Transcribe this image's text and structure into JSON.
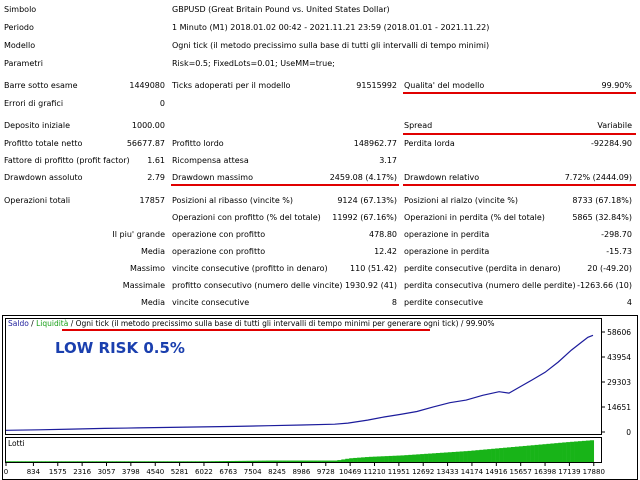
{
  "report": {
    "symbol_label": "Simbolo",
    "symbol_value": "GBPUSD (Great Britain Pound vs. United States Dollar)",
    "period_label": "Periodo",
    "period_value": "1 Minuto (M1) 2018.01.02 00:42 - 2021.11.21 23:59 (2018.01.01 - 2021.11.22)",
    "model_label": "Modello",
    "model_value": "Ogni tick (il metodo precissimo sulla base di tutti gli intervalli di tempo minimi)",
    "params_label": "Parametri",
    "params_value": "Risk=0.5; FixedLots=0.01; UseMM=true;",
    "bars_label": "Barre sotto esame",
    "bars_value": "1449080",
    "ticks_label": "Ticks adoperati per il modello",
    "ticks_value": "91515992",
    "quality_label": "Qualita' del modello",
    "quality_value": "99.90%",
    "errors_label": "Errori di grafici",
    "errors_value": "0",
    "deposit_label": "Deposito iniziale",
    "deposit_value": "1000.00",
    "spread_label": "Spread",
    "spread_value": "Variabile",
    "net_profit_label": "Profitto totale netto",
    "net_profit_value": "56677.87",
    "gross_profit_label": "Profitto lordo",
    "gross_profit_value": "148962.77",
    "gross_loss_label": "Perdita lorda",
    "gross_loss_value": "-92284.90",
    "profit_factor_label": "Fattore di profitto (profit factor)",
    "profit_factor_value": "1.61",
    "expected_payoff_label": "Ricompensa attesa",
    "expected_payoff_value": "3.17",
    "abs_dd_label": "Drawdown assoluto",
    "abs_dd_value": "2.79",
    "max_dd_label": "Drawdown massimo",
    "max_dd_value": "2459.08 (4.17%)",
    "rel_dd_label": "Drawdown relativo",
    "rel_dd_value": "7.72% (2444.09)",
    "total_trades_label": "Operazioni totali",
    "total_trades_value": "17857",
    "short_label": "Posizioni al ribasso (vincite %)",
    "short_value": "9124 (67.13%)",
    "long_label": "Posizioni al rialzo (vincite %)",
    "long_value": "8733 (67.18%)",
    "profit_trades_label": "Operazioni con profitto (% del totale)",
    "profit_trades_value": "11992 (67.16%)",
    "loss_trades_label": "Operazioni in perdita (% del totale)",
    "loss_trades_value": "5865 (32.84%)",
    "largest_label": "Il piu' grande",
    "largest_profit_label": "operazione con profitto",
    "largest_profit_value": "478.80",
    "largest_loss_label": "operazione in perdita",
    "largest_loss_value": "-298.70",
    "average_label": "Media",
    "avg_profit_label": "operazione con profitto",
    "avg_profit_value": "12.42",
    "avg_loss_label": "operazione in perdita",
    "avg_loss_value": "-15.73",
    "maximum_label": "Massimo",
    "max_cons_wins_label": "vincite consecutive (profitto in denaro)",
    "max_cons_wins_value": "110 (51.42)",
    "max_cons_losses_label": "perdite consecutive (perdita in denaro)",
    "max_cons_losses_value": "20 (-49.20)",
    "maximal_label": "Massimale",
    "maximal_profit_label": "profitto consecutivo (numero delle vincite)",
    "maximal_profit_value": "1930.92 (41)",
    "maximal_loss_label": "perdita consecutiva (numero delle perdite)",
    "maximal_loss_value": "-1263.66 (10)",
    "average2_label": "Media",
    "avg_cons_wins_label": "vincite consecutive",
    "avg_cons_wins_value": "8",
    "avg_cons_losses_label": "perdite consecutive",
    "avg_cons_losses_value": "4"
  },
  "chart_header": {
    "saldo": "Saldo",
    "sep1": " / ",
    "liquidita": "Liquidità",
    "sep2": " / ",
    "model_text": "Ogni tick (il metodo precissimo sulla base di tutti gli intervalli di tempo minimi per generare ogni tick)",
    "sep3": " / ",
    "quality": "99.90%"
  },
  "annotation": "LOW RISK 0.5%",
  "lots_label": "Lotti",
  "colors": {
    "balance_line": "#1c1c9c",
    "lots_bars": "#18b418",
    "red_underline": "#e00000",
    "annotation": "#1a3fae",
    "saldo_text": "#1c1c9c",
    "liquidita_text": "#18a018"
  },
  "chart_data": {
    "type": "line",
    "title": "",
    "xlabel": "",
    "ylabel": "",
    "y_ticks": [
      "58606",
      "43954",
      "29303",
      "14651",
      "0"
    ],
    "ylim": [
      0,
      58606
    ],
    "x_ticks": [
      "0",
      "834",
      "1575",
      "2316",
      "3057",
      "3798",
      "4540",
      "5281",
      "6022",
      "6763",
      "7504",
      "8245",
      "8986",
      "9728",
      "10469",
      "11210",
      "11951",
      "12692",
      "13433",
      "14174",
      "14916",
      "15657",
      "16398",
      "17139",
      "17880"
    ],
    "xlim": [
      0,
      18100
    ],
    "series": [
      {
        "x": [
          0,
          1000,
          2000,
          3000,
          4000,
          5000,
          6000,
          7000,
          8000,
          9000,
          10000,
          10400,
          11000,
          11500,
          12000,
          12500,
          13000,
          13500,
          14000,
          14500,
          15000,
          15300,
          15700,
          16000,
          16400,
          16800,
          17200,
          17500,
          17700,
          17857
        ],
        "values": [
          1000,
          1300,
          1700,
          2100,
          2400,
          2700,
          3000,
          3300,
          3700,
          4100,
          4600,
          5200,
          7000,
          8800,
          10300,
          12000,
          14700,
          17200,
          18700,
          21500,
          23600,
          22800,
          27200,
          30500,
          35000,
          41000,
          48000,
          52500,
          55500,
          56678
        ]
      }
    ],
    "lots": {
      "label": "Lotti",
      "x": [
        0,
        2000,
        4000,
        6000,
        8000,
        10000,
        10400,
        11000,
        12000,
        13000,
        14000,
        15000,
        16000,
        17000,
        17857
      ],
      "values": [
        0.01,
        0.01,
        0.01,
        0.01,
        0.02,
        0.02,
        0.05,
        0.07,
        0.09,
        0.12,
        0.15,
        0.19,
        0.23,
        0.27,
        0.3
      ]
    }
  }
}
